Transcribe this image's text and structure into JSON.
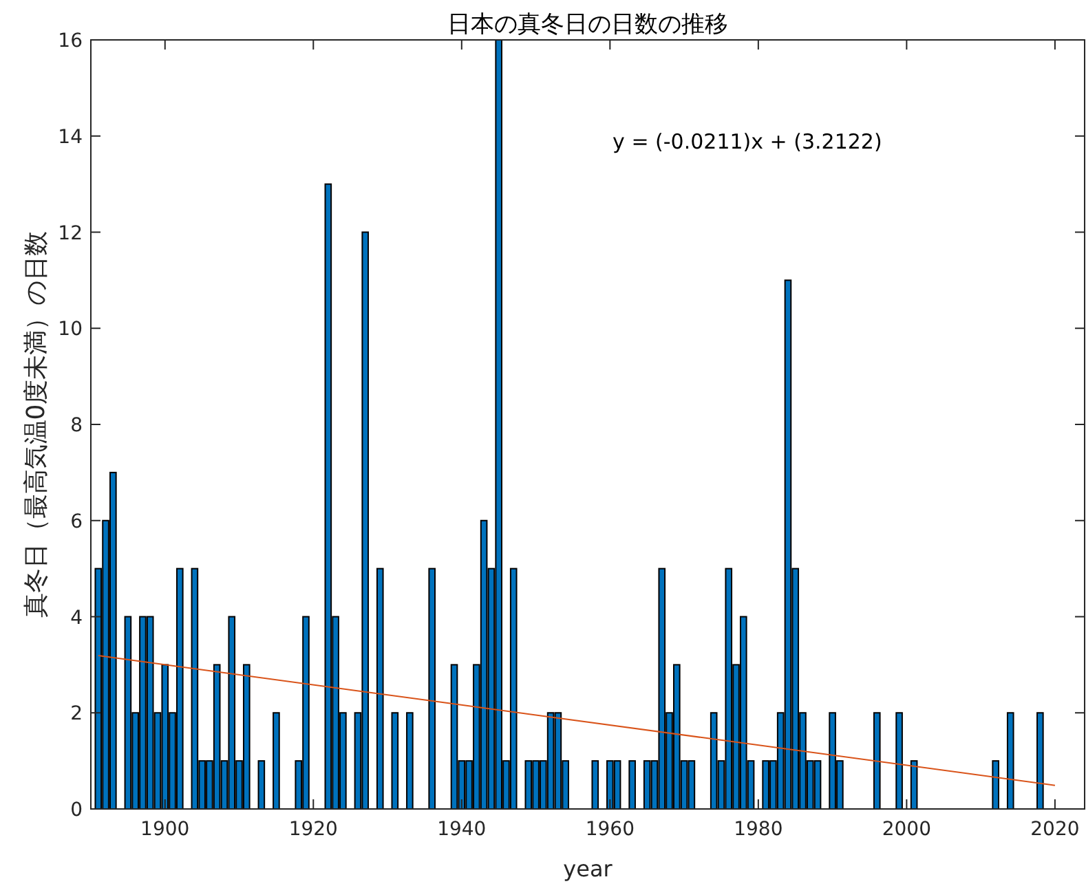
{
  "chart_data": {
    "type": "bar",
    "title": "日本の真冬日の日数の推移",
    "xlabel": "year",
    "ylabel": "真冬日（最高気温0度未満）の日数",
    "xlim": [
      1890,
      2024
    ],
    "xticks": [
      1900,
      1920,
      1940,
      1960,
      1980,
      2000,
      2020
    ],
    "ylim": [
      0,
      16
    ],
    "yticks": [
      0,
      2,
      4,
      6,
      8,
      10,
      12,
      14,
      16
    ],
    "grid": false,
    "annotations": [
      "y = (-0.0211)x + (3.2122)"
    ],
    "series": [
      {
        "color": "#0072bd",
        "x": [
          1891,
          1892,
          1893,
          1895,
          1896,
          1897,
          1898,
          1899,
          1900,
          1901,
          1902,
          1904,
          1905,
          1906,
          1907,
          1908,
          1909,
          1910,
          1911,
          1913,
          1915,
          1918,
          1919,
          1922,
          1923,
          1924,
          1926,
          1927,
          1929,
          1931,
          1933,
          1936,
          1939,
          1940,
          1941,
          1942,
          1943,
          1944,
          1945,
          1946,
          1947,
          1949,
          1950,
          1951,
          1952,
          1953,
          1954,
          1958,
          1960,
          1961,
          1963,
          1965,
          1966,
          1967,
          1968,
          1969,
          1970,
          1971,
          1974,
          1975,
          1976,
          1977,
          1978,
          1979,
          1981,
          1982,
          1983,
          1984,
          1985,
          1986,
          1987,
          1988,
          1990,
          1991,
          1996,
          1999,
          2001,
          2012,
          2014,
          2018
        ],
        "values": [
          5,
          6,
          7,
          4,
          2,
          4,
          4,
          2,
          3,
          2,
          5,
          5,
          1,
          1,
          3,
          1,
          4,
          1,
          3,
          1,
          2,
          1,
          4,
          13,
          4,
          2,
          2,
          12,
          5,
          2,
          2,
          5,
          3,
          1,
          1,
          3,
          6,
          5,
          16,
          1,
          5,
          1,
          1,
          1,
          2,
          2,
          1,
          1,
          1,
          1,
          1,
          1,
          1,
          5,
          2,
          3,
          1,
          1,
          2,
          1,
          5,
          3,
          4,
          1,
          1,
          1,
          2,
          11,
          5,
          2,
          1,
          1,
          2,
          1,
          2,
          2,
          1,
          1,
          2,
          2
        ]
      },
      {
        "type": "line",
        "color": "#d95319",
        "x": [
          1891,
          2020
        ],
        "values": [
          3.19,
          0.49
        ]
      }
    ]
  }
}
